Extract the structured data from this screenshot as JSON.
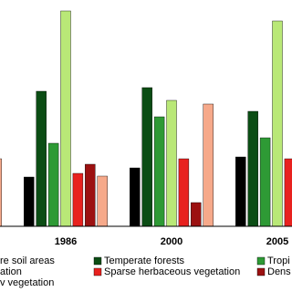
{
  "chart_data": {
    "type": "bar",
    "categories": [
      null,
      "1986",
      "2000",
      "2005"
    ],
    "series": [
      {
        "name": "re soil areas",
        "color": "#000000",
        "values": [
          null,
          54,
          64,
          76
        ]
      },
      {
        "name": "Temperate forests",
        "color": "#0b4d14",
        "values": [
          null,
          148,
          152,
          126
        ]
      },
      {
        "name": "Tropi",
        "color": "#2e9a35",
        "values": [
          null,
          91,
          120,
          97
        ]
      },
      {
        "name": "ation",
        "color": "#b9e877",
        "values": [
          null,
          236,
          138,
          225
        ]
      },
      {
        "name": "Sparse herbaceous vegetation",
        "color": "#e8221f",
        "values": [
          null,
          58,
          74,
          74
        ]
      },
      {
        "name": "Dens",
        "color": "#9c1111",
        "values": [
          null,
          68,
          26,
          null
        ]
      },
      {
        "name": "v vegetation",
        "color": "#f6a98a",
        "values": [
          74,
          55,
          134,
          null
        ]
      }
    ],
    "ylim": [
      0,
      240
    ]
  }
}
